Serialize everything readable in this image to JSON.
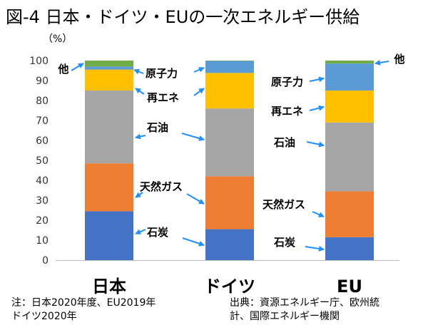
{
  "chart_data": {
    "type": "bar",
    "stacked": true,
    "title": "図-4 日本・ドイツ・EUの一次エネルギー供給",
    "ylabel": "（%）",
    "ylim": [
      0,
      100
    ],
    "yticks": [
      0,
      10,
      20,
      30,
      40,
      50,
      60,
      70,
      80,
      90,
      100
    ],
    "categories": [
      "日本",
      "ドイツ",
      "EU"
    ],
    "series": [
      {
        "name": "石炭",
        "color": "#4472C4",
        "values": [
          24.5,
          15.5,
          11.5
        ]
      },
      {
        "name": "天然ガス",
        "color": "#ED7D31",
        "values": [
          24,
          26.5,
          23
        ]
      },
      {
        "name": "石油",
        "color": "#A5A5A5",
        "values": [
          36.5,
          34,
          34.5
        ]
      },
      {
        "name": "再エネ",
        "color": "#FFC000",
        "values": [
          10.5,
          17.8,
          16
        ]
      },
      {
        "name": "原子力",
        "color": "#5B9BD5",
        "values": [
          1.5,
          6,
          13.5
        ]
      },
      {
        "name": "他",
        "color": "#70AD47",
        "values": [
          3,
          0.2,
          1.5
        ]
      }
    ]
  },
  "notes": {
    "left": [
      "注：日本2020年度、EU2019年",
      "ドイツ2020年"
    ],
    "right": [
      "出典：資源エネルギー庁、欧州統",
      "計、国際エネルギー機関"
    ]
  }
}
